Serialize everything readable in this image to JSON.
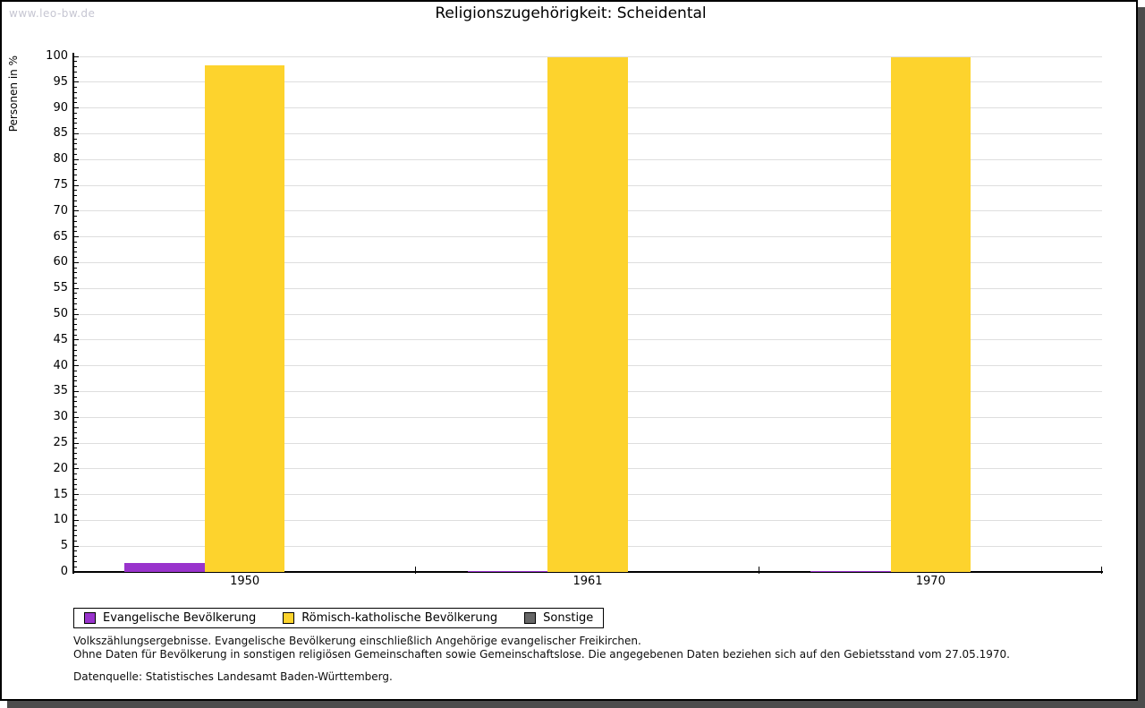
{
  "page": {
    "watermark": "www.leo-bw.de",
    "notes": [
      "Volkszählungsergebnisse. Evangelische Bevölkerung einschließlich Angehörige evangelischer Freikirchen.",
      "Ohne Daten für Bevölkerung in sonstigen religiösen Gemeinschaften sowie Gemeinschaftslose. Die angegebenen Daten beziehen sich auf den Gebietsstand vom 27.05.1970."
    ],
    "source": "Datenquelle: Statistisches Landesamt Baden-Württemberg."
  },
  "chart_data": {
    "type": "bar",
    "title": "Religionszugehörigkeit: Scheidental",
    "ylabel": "Personen in %",
    "categories": [
      "1950",
      "1961",
      "1970"
    ],
    "series": [
      {
        "name": "Evangelische Bevölkerung",
        "color": "#9933cc",
        "values": [
          1.7,
          0.2,
          0.2
        ]
      },
      {
        "name": "Römisch-katholische Bevölkerung",
        "color": "#fdd32d",
        "values": [
          98.3,
          99.8,
          99.8
        ]
      },
      {
        "name": "Sonstige",
        "color": "#666666",
        "values": [
          0,
          0,
          0
        ]
      }
    ],
    "ylim": [
      0,
      100
    ],
    "ytick_major": 5,
    "ytick_minor": 1,
    "grid": true,
    "legend_position": "bottom",
    "colors": {
      "grid": "#dedede",
      "axis": "#000000",
      "frame_shadow": "#4c4c4c",
      "watermark_text": "#c6c6d2"
    }
  }
}
